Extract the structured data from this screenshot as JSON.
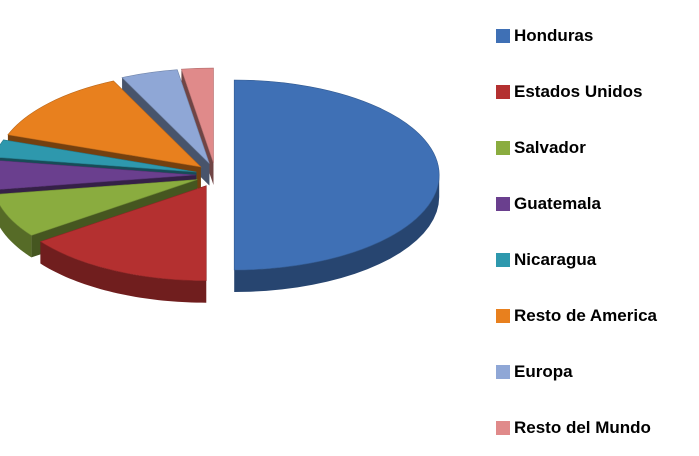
{
  "chart_data": {
    "type": "pie",
    "style": "3d-exploded",
    "title": "",
    "legend_position": "right",
    "slices": [
      {
        "label": "Honduras",
        "value": 50.0,
        "color": "#3f70b5"
      },
      {
        "label": "Estados Unidos",
        "value": 15.0,
        "color": "#b43030"
      },
      {
        "label": "Salvador",
        "value": 7.5,
        "color": "#8aac3f"
      },
      {
        "label": "Guatemala",
        "value": 5.0,
        "color": "#6a3f8e"
      },
      {
        "label": "Nicaragua",
        "value": 3.0,
        "color": "#2e98ad"
      },
      {
        "label": "Resto de America",
        "value": 12.5,
        "color": "#e8801e"
      },
      {
        "label": "Europa",
        "value": 4.5,
        "color": "#8fa7d6"
      },
      {
        "label": "Resto del Mundo",
        "value": 2.5,
        "color": "#e08a8a"
      }
    ]
  }
}
